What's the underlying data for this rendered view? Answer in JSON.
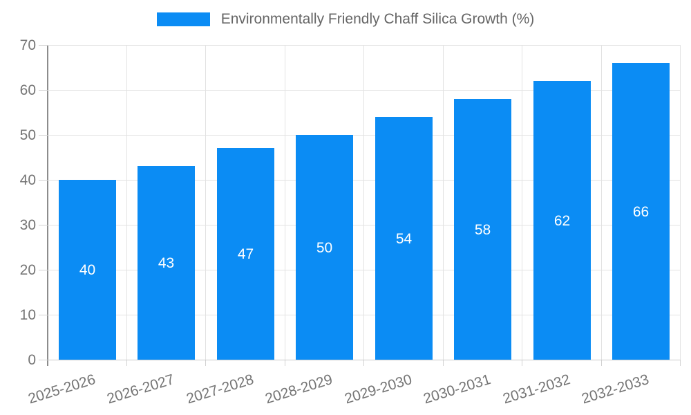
{
  "legend": {
    "label": "Environmentally Friendly Chaff Silica Growth (%)"
  },
  "colors": {
    "bar": "#0b8cf4",
    "grid": "#e2e2e2",
    "y_axis_line": "#8c8c8c",
    "x_axis_line": "#c9c9c9",
    "tick": "#d2d2d2",
    "axis_text": "#757575",
    "legend_text": "#666666",
    "bar_label_text": "#ffffff"
  },
  "chart_data": {
    "type": "bar",
    "title": "Environmentally Friendly Chaff Silica Growth (%)",
    "categories": [
      "2025-2026",
      "2026-2027",
      "2027-2028",
      "2028-2029",
      "2029-2030",
      "2030-2031",
      "2031-2032",
      "2032-2033"
    ],
    "values": [
      40,
      43,
      47,
      50,
      54,
      58,
      62,
      66
    ],
    "xlabel": "",
    "ylabel": "",
    "ylim": [
      0,
      70
    ],
    "yticks": [
      0,
      10,
      20,
      30,
      40,
      50,
      60,
      70
    ],
    "grid": true,
    "legend_position": "top",
    "bar_labels": "centered-white"
  }
}
